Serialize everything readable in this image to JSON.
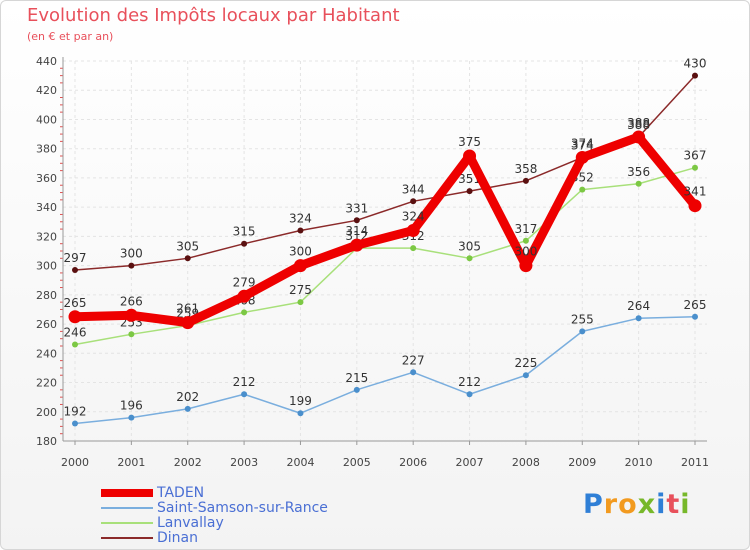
{
  "header": {
    "title": "Evolution des Impôts locaux par Habitant",
    "subtitle": "(en € et par an)"
  },
  "brand": {
    "p": "P",
    "r": "r",
    "o": "o",
    "x": "x",
    "i1": "i",
    "t": "t",
    "i2": "i"
  },
  "chart_data": {
    "type": "line",
    "title": "Evolution des Impôts locaux par Habitant",
    "subtitle": "(en € et par an)",
    "xlabel": "",
    "ylabel": "",
    "x": [
      "2000",
      "2001",
      "2002",
      "2003",
      "2004",
      "2005",
      "2006",
      "2007",
      "2008",
      "2009",
      "2010",
      "2011"
    ],
    "ylim": [
      180,
      440
    ],
    "yticks": [
      180,
      200,
      220,
      240,
      260,
      280,
      300,
      320,
      340,
      360,
      380,
      400,
      420,
      440
    ],
    "grid": true,
    "legend": "bottom-left",
    "series": [
      {
        "name": "Dinan",
        "color": "#8b2a2a",
        "marker": "#5a1010",
        "emphasis": false,
        "values": [
          297,
          300,
          305,
          315,
          324,
          331,
          344,
          351,
          358,
          374,
          388,
          430
        ]
      },
      {
        "name": "Lanvallay",
        "color": "#a8e07a",
        "marker": "#7cc844",
        "emphasis": false,
        "values": [
          246,
          253,
          259,
          268,
          275,
          312,
          312,
          305,
          317,
          352,
          356,
          367
        ]
      },
      {
        "name": "Saint-Samson-sur-Rance",
        "color": "#7aaede",
        "marker": "#4a8fcc",
        "emphasis": false,
        "values": [
          192,
          196,
          202,
          212,
          199,
          215,
          227,
          212,
          225,
          255,
          264,
          265
        ]
      },
      {
        "name": "TADEN",
        "color": "#ee0000",
        "marker": "#ee0000",
        "emphasis": true,
        "values": [
          265,
          266,
          261,
          279,
          300,
          314,
          324,
          375,
          300,
          374,
          388,
          341
        ]
      }
    ],
    "legend_order": [
      "TADEN",
      "Saint-Samson-sur-Rance",
      "Lanvallay",
      "Dinan"
    ]
  }
}
